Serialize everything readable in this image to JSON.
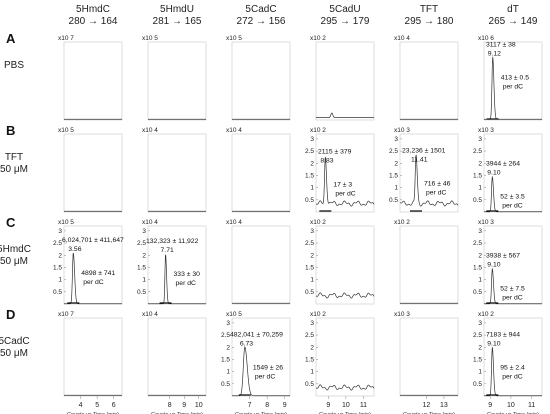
{
  "chart_data": {
    "type": "line",
    "columns": [
      {
        "name": "5HmdC",
        "transition": "280 → 164",
        "xlim": [
          3,
          6.5
        ],
        "xticks": [
          "4",
          "5",
          "6"
        ]
      },
      {
        "name": "5HmdU",
        "transition": "281 → 165",
        "xlim": [
          6.5,
          10.5
        ],
        "xticks": [
          "8",
          "9",
          "10"
        ]
      },
      {
        "name": "5CadC",
        "transition": "272 → 156",
        "xlim": [
          6,
          9.3
        ],
        "xticks": [
          "7",
          "8",
          "9"
        ]
      },
      {
        "name": "5CadU",
        "transition": "295 → 179",
        "xlim": [
          8.3,
          11.6
        ],
        "xticks": [
          "9",
          "10",
          "11"
        ]
      },
      {
        "name": "TFT",
        "transition": "295 → 180",
        "xlim": [
          10.5,
          13.8
        ],
        "xticks": [
          "12",
          "13"
        ]
      },
      {
        "name": "dT",
        "transition": "265 → 149",
        "xlim": [
          8.7,
          11.5
        ],
        "xticks": [
          "9",
          "10",
          "11"
        ]
      }
    ],
    "rows": [
      {
        "letter": "A",
        "label": [
          "PBS"
        ]
      },
      {
        "letter": "B",
        "label": [
          "TFT",
          "50 μM"
        ]
      },
      {
        "letter": "C",
        "label": [
          "5HmdC",
          "50 μM"
        ]
      },
      {
        "letter": "D",
        "label": [
          "5CadC",
          "50 μM"
        ]
      }
    ],
    "xlabel": "Counts vs Time (min)",
    "panels": [
      {
        "row": 0,
        "col": 0,
        "scale": "x10 7",
        "yticks": [],
        "ylim": [
          0,
          1
        ],
        "peak": null,
        "noise": "flat"
      },
      {
        "row": 0,
        "col": 1,
        "scale": "x10 5",
        "yticks": [],
        "ylim": [
          0,
          1
        ],
        "peak": null,
        "noise": "flat"
      },
      {
        "row": 0,
        "col": 2,
        "scale": "x10 5",
        "yticks": [],
        "ylim": [
          0,
          1
        ],
        "peak": null,
        "noise": "flat"
      },
      {
        "row": 0,
        "col": 3,
        "scale": "x10 2",
        "yticks": [],
        "ylim": [
          0,
          1
        ],
        "peak": null,
        "noise": "bump"
      },
      {
        "row": 0,
        "col": 4,
        "scale": "x10 4",
        "yticks": [],
        "ylim": [
          0,
          1
        ],
        "peak": null,
        "noise": "flat"
      },
      {
        "row": 0,
        "col": 5,
        "scale": "x10 6",
        "yticks": [],
        "ylim": [
          0,
          1
        ],
        "peak": {
          "time": 9.12,
          "time_label": "9.12",
          "height": 0.8,
          "width": 0.05,
          "area": "3117 ± 38",
          "per_dc": [
            "413 ± 0.5",
            "per dC"
          ]
        },
        "noise": "flat"
      },
      {
        "row": 1,
        "col": 0,
        "scale": "x10 5",
        "yticks": [],
        "ylim": [
          0,
          1
        ],
        "peak": null,
        "noise": "flat"
      },
      {
        "row": 1,
        "col": 1,
        "scale": "x10 4",
        "yticks": [],
        "ylim": [
          0,
          1
        ],
        "peak": null,
        "noise": "flat"
      },
      {
        "row": 1,
        "col": 2,
        "scale": "x10 4",
        "yticks": [],
        "ylim": [
          0,
          1
        ],
        "peak": null,
        "noise": "flat"
      },
      {
        "row": 1,
        "col": 3,
        "scale": "x10 2",
        "yticks": [
          "3",
          "2.5",
          "2",
          "1.5",
          "1",
          "0.5"
        ],
        "ylim": [
          0,
          3.2
        ],
        "peak": {
          "time": 8.83,
          "time_label": "8.83",
          "height": 1.95,
          "width": 0.06,
          "area": "2115 ± 379",
          "per_dc": [
            "17 ± 3",
            "per dC"
          ]
        },
        "noise": "ripple"
      },
      {
        "row": 1,
        "col": 4,
        "scale": "x10 3",
        "yticks": [
          "3",
          "2.5",
          "2",
          "1.5",
          "1",
          "0.5"
        ],
        "ylim": [
          0,
          3.2
        ],
        "peak": {
          "time": 11.41,
          "time_label": "11.41",
          "height": 2.0,
          "width": 0.06,
          "area": "23,236 ± 1501",
          "per_dc": [
            "716 ± 46",
            "per dC"
          ]
        },
        "noise": "ripple"
      },
      {
        "row": 1,
        "col": 5,
        "scale": "x10 3",
        "yticks": [
          "3",
          "2.5",
          "2",
          "1.5",
          "1",
          "0.5"
        ],
        "ylim": [
          0,
          3.2
        ],
        "peak": {
          "time": 9.1,
          "time_label": "9.10",
          "height": 1.45,
          "width": 0.05,
          "area": "3944 ± 264",
          "per_dc": [
            "52 ± 3.5",
            "per dC"
          ]
        },
        "noise": "flat"
      },
      {
        "row": 2,
        "col": 0,
        "scale": "x10 5",
        "yticks": [
          "3",
          "2.5",
          "2",
          "1.5",
          "1",
          "0.5"
        ],
        "ylim": [
          0,
          3.2
        ],
        "peak": {
          "time": 3.56,
          "time_label": "3.56",
          "height": 2.1,
          "width": 0.07,
          "area": "6,024,701 ± 411,647",
          "per_dc": [
            "4898 ± 741",
            "per dC"
          ]
        },
        "noise": "flat"
      },
      {
        "row": 2,
        "col": 1,
        "scale": "x10 4",
        "yticks": [
          "3",
          "2.5",
          "2",
          "1.5",
          "1",
          "0.5"
        ],
        "ylim": [
          0,
          3.2
        ],
        "peak": {
          "time": 7.71,
          "time_label": "7.71",
          "height": 2.05,
          "width": 0.06,
          "area": "132,323 ± 11,922",
          "per_dc": [
            "333 ± 30",
            "per dC"
          ]
        },
        "noise": "flat"
      },
      {
        "row": 2,
        "col": 2,
        "scale": "x10 4",
        "yticks": [],
        "ylim": [
          0,
          1
        ],
        "peak": null,
        "noise": "flat"
      },
      {
        "row": 2,
        "col": 3,
        "scale": "x10 2",
        "yticks": [
          "3",
          "2.5",
          "2",
          "1.5",
          "1",
          "0.5"
        ],
        "ylim": [
          0,
          3.2
        ],
        "peak": null,
        "noise": "ripple"
      },
      {
        "row": 2,
        "col": 4,
        "scale": "x10 2",
        "yticks": [],
        "ylim": [
          0,
          1
        ],
        "peak": null,
        "noise": "flat"
      },
      {
        "row": 2,
        "col": 5,
        "scale": "x10 3",
        "yticks": [
          "3",
          "2.5",
          "2",
          "1.5",
          "1",
          "0.5"
        ],
        "ylim": [
          0,
          3.2
        ],
        "peak": {
          "time": 9.1,
          "time_label": "9.10",
          "height": 1.45,
          "width": 0.05,
          "area": "3938 ± 567",
          "per_dc": [
            "52 ± 7.5",
            "per dC"
          ]
        },
        "noise": "flat"
      },
      {
        "row": 3,
        "col": 0,
        "scale": "x10 7",
        "yticks": [],
        "ylim": [
          0,
          1
        ],
        "peak": null,
        "noise": "flat"
      },
      {
        "row": 3,
        "col": 1,
        "scale": "x10 4",
        "yticks": [],
        "ylim": [
          0,
          1
        ],
        "peak": null,
        "noise": "flat"
      },
      {
        "row": 3,
        "col": 2,
        "scale": "x10 5",
        "yticks": [
          "3",
          "2.5",
          "2",
          "1.5",
          "1",
          "0.5"
        ],
        "ylim": [
          0,
          3.2
        ],
        "peak": {
          "time": 6.73,
          "time_label": "6.73",
          "height": 2.0,
          "width": 0.12,
          "area": "482,041 ± 70,259",
          "per_dc": [
            "1549 ± 26",
            "per dC"
          ]
        },
        "noise": "flat"
      },
      {
        "row": 3,
        "col": 3,
        "scale": "x10 2",
        "yticks": [
          "3",
          "2.5",
          "2",
          "1.5",
          "1",
          "0.5"
        ],
        "ylim": [
          0,
          3.2
        ],
        "peak": null,
        "noise": "ripple"
      },
      {
        "row": 3,
        "col": 4,
        "scale": "x10 3",
        "yticks": [],
        "ylim": [
          0,
          1
        ],
        "peak": null,
        "noise": "flat"
      },
      {
        "row": 3,
        "col": 5,
        "scale": "x10 2",
        "yticks": [
          "3",
          "2.5",
          "2",
          "1.5",
          "1",
          "0.5"
        ],
        "ylim": [
          0,
          3.2
        ],
        "peak": {
          "time": 9.1,
          "time_label": "9.10",
          "height": 2.0,
          "width": 0.05,
          "area": "7183 ± 944",
          "per_dc": [
            "95 ± 2.4",
            "per dC"
          ]
        },
        "noise": "flat"
      }
    ]
  }
}
